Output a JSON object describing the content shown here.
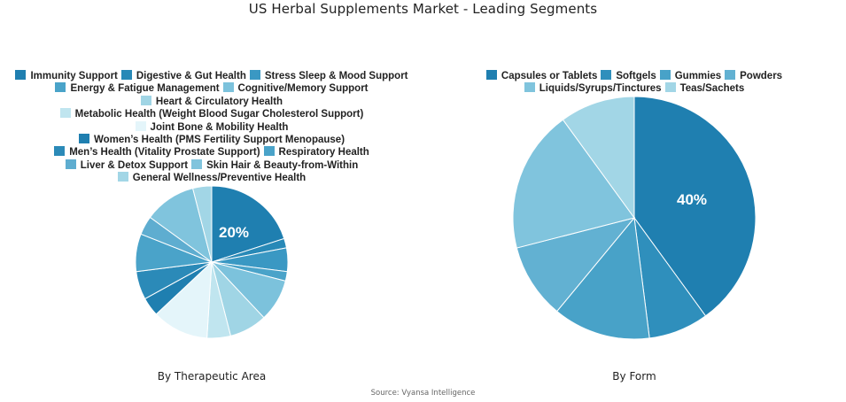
{
  "title": "US Herbal Supplements Market - Leading Segments",
  "source": "Source: Vyansa Intelligence",
  "left": {
    "subtitle": "By Therapeutic Area",
    "label": "20%",
    "legend_rows": [
      [
        0,
        1,
        2
      ],
      [
        3,
        4
      ],
      [
        5
      ],
      [
        6
      ],
      [
        7
      ],
      [
        8
      ],
      [
        9,
        10
      ],
      [
        11,
        12
      ],
      [
        13
      ]
    ]
  },
  "right": {
    "subtitle": "By Form",
    "label": "40%",
    "legend_rows": [
      [
        0,
        1,
        2,
        3
      ],
      [
        4,
        5
      ]
    ]
  },
  "chart_data": [
    {
      "type": "pie",
      "title": "By Therapeutic Area",
      "start_angle": "top, clockwise",
      "categories": [
        "Immunity Support",
        "Digestive & Gut Health",
        "Stress Sleep & Mood Support",
        "Energy & Fatigue Management",
        "Cognitive/Memory Support",
        "Heart & Circulatory Health",
        "Metabolic Health (Weight Blood Sugar Cholesterol Support)",
        "Joint Bone & Mobility Health",
        "Women’s Health (PMS Fertility Support Menopause)",
        "Men’s Health (Vitality Prostate Support)",
        "Respiratory Health",
        "Liver & Detox Support",
        "Skin Hair & Beauty-from-Within",
        "General Wellness/Preventive Health"
      ],
      "values": [
        20,
        2,
        5,
        2,
        9,
        8,
        5,
        12,
        4,
        6,
        8,
        4,
        11,
        4
      ],
      "colors": [
        "#1f7fb0",
        "#2889b7",
        "#3a98c3",
        "#4aa3c9",
        "#7cc2dc",
        "#a0d5e5",
        "#c0e5ef",
        "#e4f5fa",
        "#1f7fb0",
        "#2b8ab8",
        "#4aa3c9",
        "#5eadd0",
        "#80c4dd",
        "#a2d6e6"
      ],
      "data_labels": {
        "Immunity Support": "20%"
      },
      "legend_position": "top"
    },
    {
      "type": "pie",
      "title": "By Form",
      "start_angle": "top, clockwise",
      "categories": [
        "Capsules or Tablets",
        "Softgels",
        "Gummies",
        "Powders",
        "Liquids/Syrups/Tinctures",
        "Teas/Sachets"
      ],
      "values": [
        40,
        8,
        13,
        10,
        19,
        10
      ],
      "colors": [
        "#1f7fb0",
        "#2f8fbc",
        "#48a2c8",
        "#62b1d2",
        "#80c4dd",
        "#a2d6e6"
      ],
      "data_labels": {
        "Capsules or Tablets": "40%"
      },
      "legend_position": "top"
    }
  ]
}
